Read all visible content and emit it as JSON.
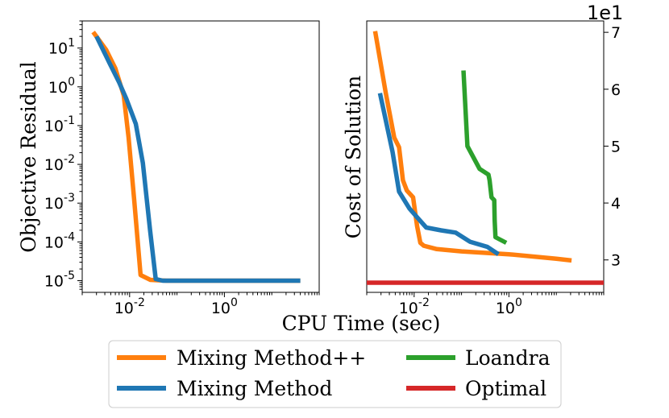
{
  "chart_data": [
    {
      "type": "line",
      "xscale": "log",
      "yscale": "log",
      "xlim": [
        0.001,
        100
      ],
      "ylim": [
        5e-06,
        50
      ],
      "ylabel": "Objective Residual",
      "xticks": [
        "10^-2",
        "10^0"
      ],
      "yticks": [
        "10^1",
        "10^0",
        "10^-1",
        "10^-2",
        "10^-3",
        "10^-4",
        "10^-5"
      ],
      "series": [
        {
          "name": "Mixing Method++",
          "color": "#ff7f0e",
          "x": [
            0.0017,
            0.0032,
            0.005,
            0.0075,
            0.0095,
            0.0125,
            0.017,
            0.0275,
            0.06,
            0.25,
            1.0,
            4.0,
            40
          ],
          "y": [
            26,
            9,
            3,
            0.6,
            0.05,
            0.0012,
            1.4e-05,
            1.05e-05,
            1e-05,
            1e-05,
            1e-05,
            1e-05,
            1e-05
          ]
        },
        {
          "name": "Mixing Method",
          "color": "#1f77b4",
          "x": [
            0.002,
            0.0038,
            0.006,
            0.0085,
            0.0135,
            0.019,
            0.027,
            0.0355,
            0.05,
            0.25,
            1.0,
            4.0,
            40
          ],
          "y": [
            20,
            4,
            1.3,
            0.5,
            0.11,
            0.011,
            0.0002,
            1.1e-05,
            1e-05,
            1e-05,
            1e-05,
            1e-05,
            1e-05
          ]
        }
      ]
    },
    {
      "type": "line",
      "xscale": "log",
      "xlim": [
        0.001,
        100
      ],
      "ylim": [
        24.3,
        72
      ],
      "ylabel": "Cost of Solution",
      "xlabel": "CPU Time (sec)",
      "y_multiplier": "1e1",
      "xticks": [
        "10^-2",
        "10^0"
      ],
      "yticks": [
        7,
        6,
        5,
        4,
        3
      ],
      "series": [
        {
          "name": "Mixing Method++",
          "color": "#ff7f0e",
          "x": [
            0.0015,
            0.0025,
            0.0038,
            0.0048,
            0.0058,
            0.007,
            0.0095,
            0.0115,
            0.0135,
            0.016,
            0.03,
            0.1,
            1.0,
            10,
            21
          ],
          "y": [
            70.2,
            59.5,
            51.5,
            49.8,
            44,
            42.2,
            41,
            36,
            33,
            32.5,
            31.9,
            31.5,
            31.0,
            30.2,
            29.9
          ]
        },
        {
          "name": "Mixing Method",
          "color": "#1f77b4",
          "x": [
            0.0019,
            0.0035,
            0.0048,
            0.008,
            0.0115,
            0.018,
            0.037,
            0.075,
            0.15,
            0.35,
            0.6
          ],
          "y": [
            59.3,
            49,
            42,
            39,
            37.5,
            35.7,
            35.2,
            34.8,
            33.2,
            32.3,
            31.0
          ]
        },
        {
          "name": "Loandra",
          "color": "#2ca02c",
          "x": [
            0.11,
            0.133,
            0.24,
            0.37,
            0.39,
            0.43,
            0.49,
            0.5,
            0.52,
            0.88
          ],
          "y": [
            63.3,
            50,
            46,
            45,
            44,
            41,
            40.5,
            37,
            34,
            33
          ]
        },
        {
          "name": "Optimal",
          "color": "#d62728",
          "x": [
            0.001,
            100
          ],
          "y": [
            26,
            26
          ]
        }
      ]
    }
  ],
  "legend": {
    "placement": "bottom-center",
    "entries": [
      {
        "name": "Mixing Method++",
        "color": "#ff7f0e"
      },
      {
        "name": "Loandra",
        "color": "#2ca02c"
      },
      {
        "name": "Mixing Method",
        "color": "#1f77b4"
      },
      {
        "name": "Optimal",
        "color": "#d62728"
      }
    ]
  }
}
